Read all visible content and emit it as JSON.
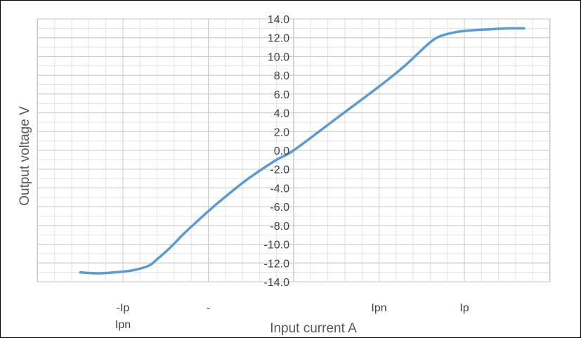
{
  "chart_data": {
    "type": "line",
    "xlabel": "Input current A",
    "ylabel": "Output voltage V",
    "ylim": [
      -14,
      14
    ],
    "y_ticks": [
      "14.0",
      "12.0",
      "10.0",
      "8.0",
      "6.0",
      "4.0",
      "2.0",
      "0.0",
      "-2.0",
      "-4.0",
      "-6.0",
      "-8.0",
      "-10.0",
      "-12.0",
      "-14.0"
    ],
    "x_tick_labels": [
      {
        "lines": [
          "-Ip",
          "Ipn"
        ],
        "x": -1.0
      },
      {
        "lines": [
          "-"
        ],
        "x": -0.5
      },
      {
        "lines": [
          "Ipn"
        ],
        "x": 0.5
      },
      {
        "lines": [
          "Ip"
        ],
        "x": 1.0
      }
    ],
    "xlim": [
      -1.6,
      1.5
    ],
    "grid": true,
    "series": [
      {
        "color": "#5b9bd5",
        "points": [
          [
            -1.25,
            -13.0
          ],
          [
            -1.15,
            -13.1
          ],
          [
            -1.05,
            -13.0
          ],
          [
            -0.95,
            -12.8
          ],
          [
            -0.85,
            -12.3
          ],
          [
            -0.8,
            -11.6
          ],
          [
            -0.72,
            -10.3
          ],
          [
            -0.65,
            -9.0
          ],
          [
            -0.55,
            -7.3
          ],
          [
            -0.45,
            -5.7
          ],
          [
            -0.35,
            -4.2
          ],
          [
            -0.25,
            -2.8
          ],
          [
            -0.1,
            -1.0
          ],
          [
            0.0,
            0.0
          ],
          [
            0.25,
            3.4
          ],
          [
            0.5,
            6.8
          ],
          [
            0.65,
            9.0
          ],
          [
            0.78,
            11.2
          ],
          [
            0.85,
            12.1
          ],
          [
            0.95,
            12.6
          ],
          [
            1.05,
            12.8
          ],
          [
            1.15,
            12.9
          ],
          [
            1.25,
            13.0
          ],
          [
            1.35,
            13.0
          ]
        ]
      }
    ]
  }
}
